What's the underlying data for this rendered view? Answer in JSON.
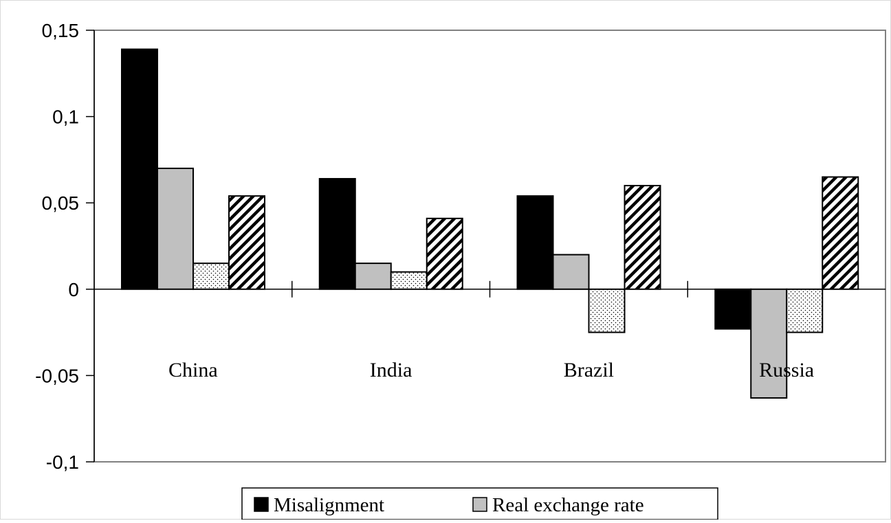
{
  "chart_data": {
    "type": "bar",
    "categories": [
      "China",
      "India",
      "Brazil",
      "Russia"
    ],
    "series": [
      {
        "name": "Misalignment",
        "color": "#000000",
        "pattern": "solid",
        "values": [
          0.139,
          0.064,
          0.054,
          -0.023
        ]
      },
      {
        "name": "Real exchange rate",
        "color": "#c0c0c0",
        "pattern": "solid",
        "values": [
          0.07,
          0.015,
          0.02,
          -0.063
        ]
      },
      {
        "color": "#ffffff",
        "pattern": "dots",
        "values": [
          0.015,
          0.01,
          -0.025,
          -0.025
        ]
      },
      {
        "color": "#ffffff",
        "pattern": "diagonal-hatch",
        "values": [
          0.054,
          0.041,
          0.06,
          0.065
        ]
      }
    ],
    "y_ticks": [
      "0,15",
      "0,1",
      "0,05",
      "0",
      "-0,05",
      "-0,1"
    ],
    "y_tick_values": [
      0.15,
      0.1,
      0.05,
      0,
      -0.05,
      -0.1
    ],
    "ylim": [
      -0.1,
      0.15
    ],
    "title": "",
    "xlabel": "",
    "ylabel": "",
    "grid": false,
    "legend": {
      "placement": "bottom-center",
      "entries": [
        "Misalignment",
        "Real exchange rate"
      ]
    }
  }
}
